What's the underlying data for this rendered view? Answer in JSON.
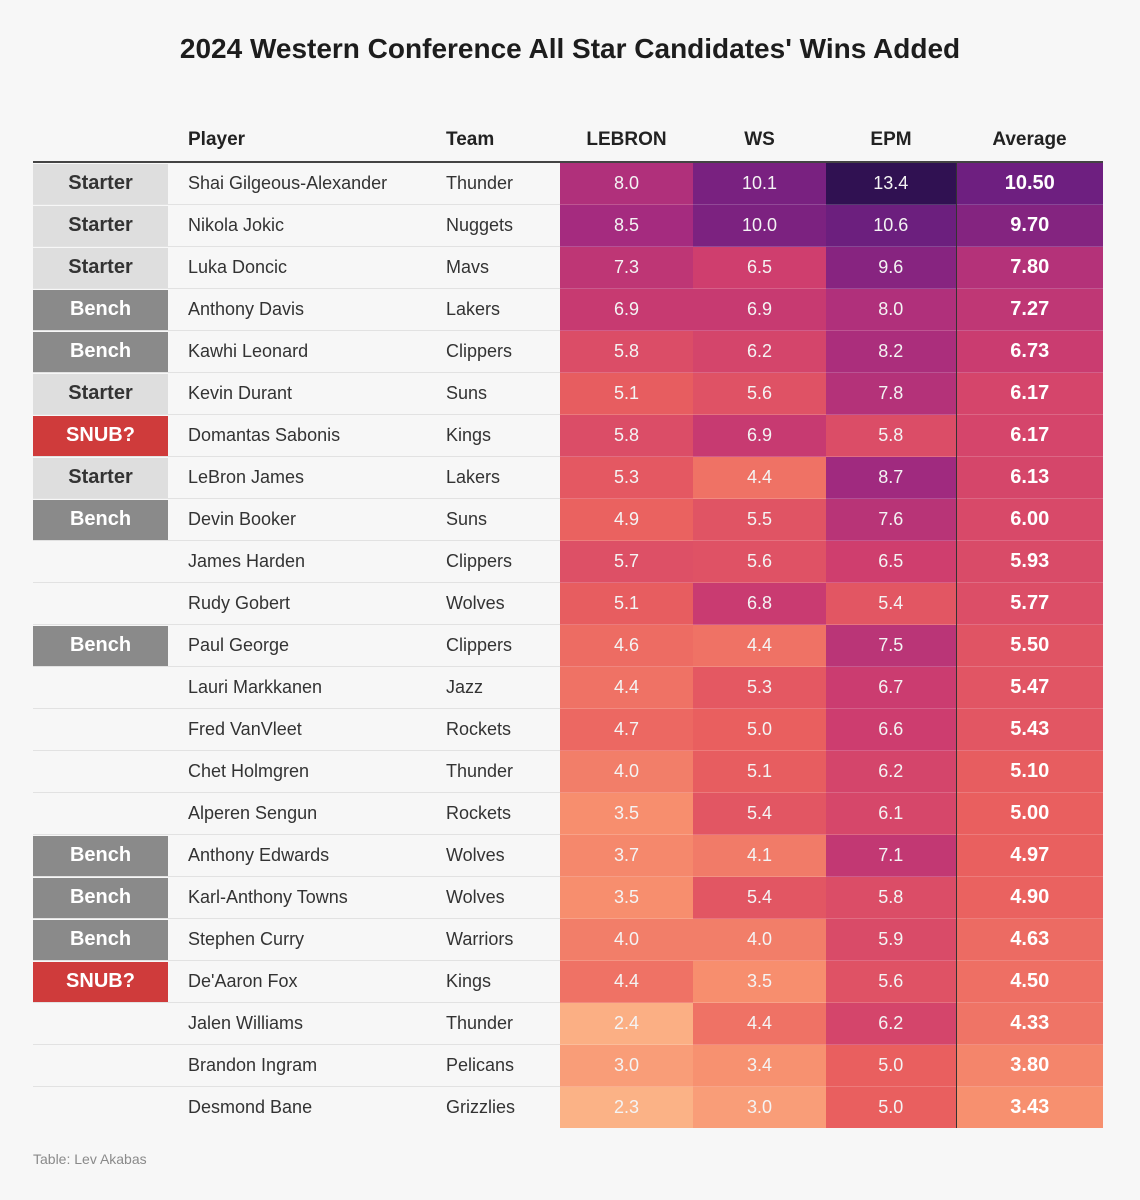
{
  "title": "2024 Western Conference All Star Candidates' Wins Added",
  "source": "Table: Lev Akabas",
  "colors": {
    "scale_low": "#fcbb8c",
    "scale_mid": "#e2505f",
    "scale_high": "#2e1150",
    "starter_badge": "#dedede",
    "bench_badge": "#8a8a8a",
    "snub_badge": "#cf3b3b"
  },
  "chart_data": {
    "type": "table",
    "title": "2024 Western Conference All Star Candidates' Wins Added",
    "columns": [
      "",
      "Player",
      "Team",
      "LEBRON",
      "WS",
      "EPM",
      "Average"
    ],
    "rows": [
      {
        "status": "Starter",
        "player": "Shai Gilgeous-Alexander",
        "team": "Thunder",
        "lebron": "8.0",
        "ws": "10.1",
        "epm": "13.4",
        "avg": "10.50"
      },
      {
        "status": "Starter",
        "player": "Nikola Jokic",
        "team": "Nuggets",
        "lebron": "8.5",
        "ws": "10.0",
        "epm": "10.6",
        "avg": "9.70"
      },
      {
        "status": "Starter",
        "player": "Luka Doncic",
        "team": "Mavs",
        "lebron": "7.3",
        "ws": "6.5",
        "epm": "9.6",
        "avg": "7.80"
      },
      {
        "status": "Bench",
        "player": "Anthony Davis",
        "team": "Lakers",
        "lebron": "6.9",
        "ws": "6.9",
        "epm": "8.0",
        "avg": "7.27"
      },
      {
        "status": "Bench",
        "player": "Kawhi Leonard",
        "team": "Clippers",
        "lebron": "5.8",
        "ws": "6.2",
        "epm": "8.2",
        "avg": "6.73"
      },
      {
        "status": "Starter",
        "player": "Kevin Durant",
        "team": "Suns",
        "lebron": "5.1",
        "ws": "5.6",
        "epm": "7.8",
        "avg": "6.17"
      },
      {
        "status": "SNUB?",
        "player": "Domantas Sabonis",
        "team": "Kings",
        "lebron": "5.8",
        "ws": "6.9",
        "epm": "5.8",
        "avg": "6.17"
      },
      {
        "status": "Starter",
        "player": "LeBron James",
        "team": "Lakers",
        "lebron": "5.3",
        "ws": "4.4",
        "epm": "8.7",
        "avg": "6.13"
      },
      {
        "status": "Bench",
        "player": "Devin Booker",
        "team": "Suns",
        "lebron": "4.9",
        "ws": "5.5",
        "epm": "7.6",
        "avg": "6.00"
      },
      {
        "status": "",
        "player": "James Harden",
        "team": "Clippers",
        "lebron": "5.7",
        "ws": "5.6",
        "epm": "6.5",
        "avg": "5.93"
      },
      {
        "status": "",
        "player": "Rudy Gobert",
        "team": "Wolves",
        "lebron": "5.1",
        "ws": "6.8",
        "epm": "5.4",
        "avg": "5.77"
      },
      {
        "status": "Bench",
        "player": "Paul George",
        "team": "Clippers",
        "lebron": "4.6",
        "ws": "4.4",
        "epm": "7.5",
        "avg": "5.50"
      },
      {
        "status": "",
        "player": "Lauri Markkanen",
        "team": "Jazz",
        "lebron": "4.4",
        "ws": "5.3",
        "epm": "6.7",
        "avg": "5.47"
      },
      {
        "status": "",
        "player": "Fred VanVleet",
        "team": "Rockets",
        "lebron": "4.7",
        "ws": "5.0",
        "epm": "6.6",
        "avg": "5.43"
      },
      {
        "status": "",
        "player": "Chet Holmgren",
        "team": "Thunder",
        "lebron": "4.0",
        "ws": "5.1",
        "epm": "6.2",
        "avg": "5.10"
      },
      {
        "status": "",
        "player": "Alperen Sengun",
        "team": "Rockets",
        "lebron": "3.5",
        "ws": "5.4",
        "epm": "6.1",
        "avg": "5.00"
      },
      {
        "status": "Bench",
        "player": "Anthony Edwards",
        "team": "Wolves",
        "lebron": "3.7",
        "ws": "4.1",
        "epm": "7.1",
        "avg": "4.97"
      },
      {
        "status": "Bench",
        "player": "Karl-Anthony Towns",
        "team": "Wolves",
        "lebron": "3.5",
        "ws": "5.4",
        "epm": "5.8",
        "avg": "4.90"
      },
      {
        "status": "Bench",
        "player": "Stephen Curry",
        "team": "Warriors",
        "lebron": "4.0",
        "ws": "4.0",
        "epm": "5.9",
        "avg": "4.63"
      },
      {
        "status": "SNUB?",
        "player": "De'Aaron Fox",
        "team": "Kings",
        "lebron": "4.4",
        "ws": "3.5",
        "epm": "5.6",
        "avg": "4.50"
      },
      {
        "status": "",
        "player": "Jalen Williams",
        "team": "Thunder",
        "lebron": "2.4",
        "ws": "4.4",
        "epm": "6.2",
        "avg": "4.33"
      },
      {
        "status": "",
        "player": "Brandon Ingram",
        "team": "Pelicans",
        "lebron": "3.0",
        "ws": "3.4",
        "epm": "5.0",
        "avg": "3.80"
      },
      {
        "status": "",
        "player": "Desmond Bane",
        "team": "Grizzlies",
        "lebron": "2.3",
        "ws": "3.0",
        "epm": "5.0",
        "avg": "3.43"
      }
    ]
  }
}
